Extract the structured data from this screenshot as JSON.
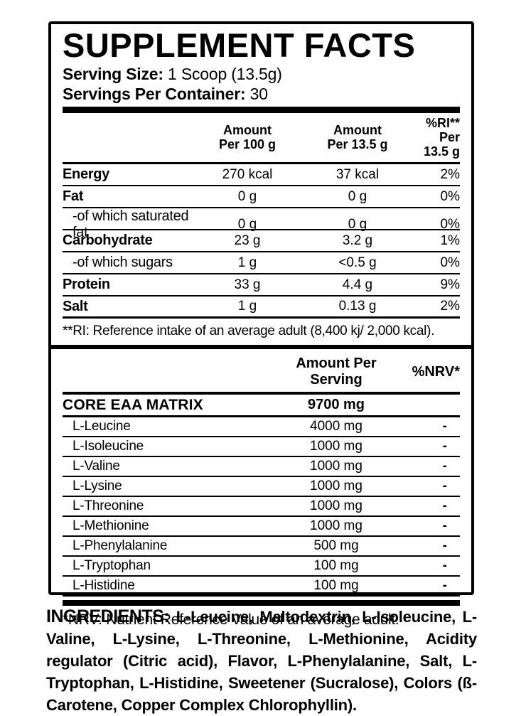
{
  "colors": {
    "text": "#000000",
    "background": "#ffffff"
  },
  "header": {
    "title": "SUPPLEMENT FACTS",
    "serving_size_label": "Serving Size:",
    "serving_size_value": " 1 Scoop (13.5g)",
    "servings_label": "Servings Per Container:",
    "servings_value": " 30"
  },
  "nutrition_table": {
    "columns": {
      "c1_line1": "Amount",
      "c1_line2": "Per 100 g",
      "c2_line1": "Amount",
      "c2_line2": "Per 13.5 g",
      "c3_line1": "%RI**",
      "c3_line2": "Per 13.5 g"
    },
    "rows": [
      {
        "name": "Energy",
        "per100": "270 kcal",
        "per_serving": "37 kcal",
        "ri": "2%"
      },
      {
        "name": "Fat",
        "per100": "0 g",
        "per_serving": "0 g",
        "ri": "0%"
      },
      {
        "name": "-of which saturated fat",
        "per100": "0 g",
        "per_serving": "0 g",
        "ri": "0%"
      },
      {
        "name": "Carbohydrate",
        "per100": "23 g",
        "per_serving": "3.2 g",
        "ri": "1%"
      },
      {
        "name": "-of which sugars",
        "per100": "1 g",
        "per_serving": "<0.5 g",
        "ri": "0%"
      },
      {
        "name": "Protein",
        "per100": "33 g",
        "per_serving": "4.4 g",
        "ri": "9%"
      },
      {
        "name": "Salt",
        "per100": "1 g",
        "per_serving": "0.13 g",
        "ri": "2%"
      }
    ],
    "footnote": "**RI: Reference intake of an average adult (8,400 kj/ 2,000 kcal)."
  },
  "eaa_table": {
    "header": {
      "amount": "Amount Per Serving",
      "nrv": "%NRV*"
    },
    "group": {
      "name": "CORE EAA MATRIX",
      "amount": "9700 mg"
    },
    "rows": [
      {
        "name": "L-Leucine",
        "amount": "4000 mg",
        "nrv": "-"
      },
      {
        "name": "L-Isoleucine",
        "amount": "1000 mg",
        "nrv": "-"
      },
      {
        "name": "L-Valine",
        "amount": "1000 mg",
        "nrv": "-"
      },
      {
        "name": "L-Lysine",
        "amount": "1000 mg",
        "nrv": "-"
      },
      {
        "name": "L-Threonine",
        "amount": "1000 mg",
        "nrv": "-"
      },
      {
        "name": "L-Methionine",
        "amount": "1000 mg",
        "nrv": "-"
      },
      {
        "name": "L-Phenylalanine",
        "amount": "500 mg",
        "nrv": "-"
      },
      {
        "name": "L-Tryptophan",
        "amount": "100 mg",
        "nrv": "-"
      },
      {
        "name": "L-Histidine",
        "amount": "100 mg",
        "nrv": "-"
      }
    ],
    "footnote": "*NRV: Nutrient Reference Value of an average adult."
  },
  "ingredients": {
    "label": "INGREDIENTS:",
    "text": " L-Leucine, Maltodextrin, L-Isoleucine, L-Valine, L-Lysine, L-Threonine, L-Methionine, Acidity regulator (Citric acid), Flavor, L-Phenylalanine, Salt, L-Tryptophan, L-Histidine, Sweetener (Sucralose), Colors (ß-Carotene, Copper Complex Chlorophyllin)."
  }
}
